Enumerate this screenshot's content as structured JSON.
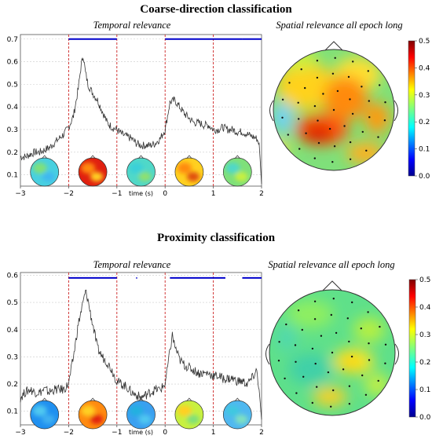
{
  "sections": [
    {
      "title": "Coarse-direction classification",
      "temporal_subtitle": "Temporal relevance",
      "spatial_subtitle": "Spatial relevance all epoch long"
    },
    {
      "title": "Proximity classification",
      "temporal_subtitle": "Temporal relevance",
      "spatial_subtitle": "Spatial relevance all epoch long"
    }
  ],
  "colors": {
    "trace": "#333333",
    "significance": "#0000cc",
    "boundary": "#cc2222",
    "grid": "#cccccc"
  },
  "chart_data": [
    {
      "type": "line",
      "panel": "Coarse-direction classification — Temporal relevance",
      "xlabel": "time (s)",
      "ylabel": "",
      "xlim": [
        -3,
        2
      ],
      "ylim": [
        0.05,
        0.72
      ],
      "xticks": [
        "−3",
        "−2",
        "−1",
        "0",
        "1",
        "2"
      ],
      "yticks": [
        "0.1",
        "0.2",
        "0.3",
        "0.4",
        "0.5",
        "0.6",
        "0.7"
      ],
      "grid": true,
      "boundaries": [
        -2,
        -1,
        0,
        1
      ],
      "significance_level": 0.7,
      "significance_segments": [
        [
          -2,
          -1
        ],
        [
          0,
          1.0
        ],
        [
          1.0,
          1.6
        ],
        [
          1.6,
          2
        ]
      ],
      "series": [
        {
          "x": [
            -3,
            -2.9,
            -2.8,
            -2.7,
            -2.6,
            -2.5,
            -2.4,
            -2.3,
            -2.2,
            -2.1,
            -2.0,
            -1.9,
            -1.8,
            -1.75,
            -1.7,
            -1.65,
            -1.6,
            -1.5,
            -1.4,
            -1.3,
            -1.2,
            -1.1,
            -1.0,
            -0.9,
            -0.8,
            -0.7,
            -0.6,
            -0.5,
            -0.4,
            -0.3,
            -0.2,
            -0.1,
            0.0,
            0.1,
            0.2,
            0.3,
            0.4,
            0.5,
            0.6,
            0.7,
            0.8,
            0.9,
            1.0,
            1.1,
            1.2,
            1.3,
            1.4,
            1.5,
            1.6,
            1.7,
            1.8,
            1.9,
            1.95,
            2.0
          ],
          "values": [
            0.18,
            0.18,
            0.19,
            0.2,
            0.2,
            0.21,
            0.22,
            0.24,
            0.26,
            0.28,
            0.31,
            0.36,
            0.48,
            0.57,
            0.63,
            0.55,
            0.5,
            0.46,
            0.43,
            0.38,
            0.33,
            0.31,
            0.3,
            0.28,
            0.27,
            0.26,
            0.24,
            0.23,
            0.23,
            0.23,
            0.24,
            0.26,
            0.3,
            0.42,
            0.43,
            0.4,
            0.37,
            0.35,
            0.33,
            0.33,
            0.32,
            0.32,
            0.3,
            0.3,
            0.31,
            0.3,
            0.3,
            0.29,
            0.29,
            0.28,
            0.27,
            0.26,
            0.24,
            0.06
          ]
        }
      ],
      "inset_topomaps": 5
    },
    {
      "type": "line",
      "panel": "Proximity classification — Temporal relevance",
      "xlabel": "time (s)",
      "ylabel": "",
      "xlim": [
        -3,
        2
      ],
      "ylim": [
        0.05,
        0.61
      ],
      "xticks": [
        "−3",
        "−2",
        "−1",
        "0",
        "1",
        "2"
      ],
      "yticks": [
        "0.1",
        "0.2",
        "0.3",
        "0.4",
        "0.5",
        "0.6"
      ],
      "grid": true,
      "boundaries": [
        -2,
        -1,
        0,
        1
      ],
      "significance_level": 0.59,
      "significance_segments": [
        [
          -2,
          -1
        ],
        [
          -0.6,
          -0.58
        ],
        [
          0.1,
          1.25
        ],
        [
          1.6,
          2
        ]
      ],
      "series": [
        {
          "x": [
            -3,
            -2.9,
            -2.8,
            -2.7,
            -2.6,
            -2.5,
            -2.4,
            -2.3,
            -2.2,
            -2.1,
            -2.0,
            -1.9,
            -1.8,
            -1.7,
            -1.65,
            -1.6,
            -1.55,
            -1.5,
            -1.4,
            -1.3,
            -1.2,
            -1.1,
            -1.0,
            -0.9,
            -0.8,
            -0.7,
            -0.6,
            -0.5,
            -0.4,
            -0.3,
            -0.2,
            -0.1,
            0.0,
            0.1,
            0.15,
            0.2,
            0.3,
            0.4,
            0.5,
            0.6,
            0.7,
            0.8,
            0.9,
            1.0,
            1.1,
            1.2,
            1.3,
            1.4,
            1.5,
            1.6,
            1.7,
            1.8,
            1.9,
            1.95,
            2.0
          ],
          "values": [
            0.15,
            0.17,
            0.18,
            0.17,
            0.17,
            0.18,
            0.17,
            0.18,
            0.18,
            0.18,
            0.2,
            0.3,
            0.42,
            0.5,
            0.54,
            0.51,
            0.46,
            0.42,
            0.33,
            0.3,
            0.28,
            0.25,
            0.21,
            0.2,
            0.19,
            0.17,
            0.16,
            0.15,
            0.16,
            0.17,
            0.18,
            0.18,
            0.2,
            0.32,
            0.38,
            0.34,
            0.29,
            0.27,
            0.26,
            0.25,
            0.24,
            0.24,
            0.24,
            0.23,
            0.23,
            0.22,
            0.22,
            0.22,
            0.21,
            0.21,
            0.2,
            0.22,
            0.25,
            0.18,
            0.07
          ]
        }
      ],
      "inset_topomaps": 5
    },
    {
      "type": "heatmap",
      "panel": "Coarse-direction classification — Spatial relevance all epoch long",
      "colorbar_ticks": [
        "0.0",
        "0.1",
        "0.2",
        "0.3",
        "0.4",
        "0.5"
      ],
      "colorbar_range": [
        0.0,
        0.5
      ],
      "colormap": "jet"
    },
    {
      "type": "heatmap",
      "panel": "Proximity classification — Spatial relevance all epoch long",
      "colorbar_ticks": [
        "0.0",
        "0.1",
        "0.2",
        "0.3",
        "0.4",
        "0.5"
      ],
      "colorbar_range": [
        0.0,
        0.5
      ],
      "colormap": "jet"
    }
  ]
}
